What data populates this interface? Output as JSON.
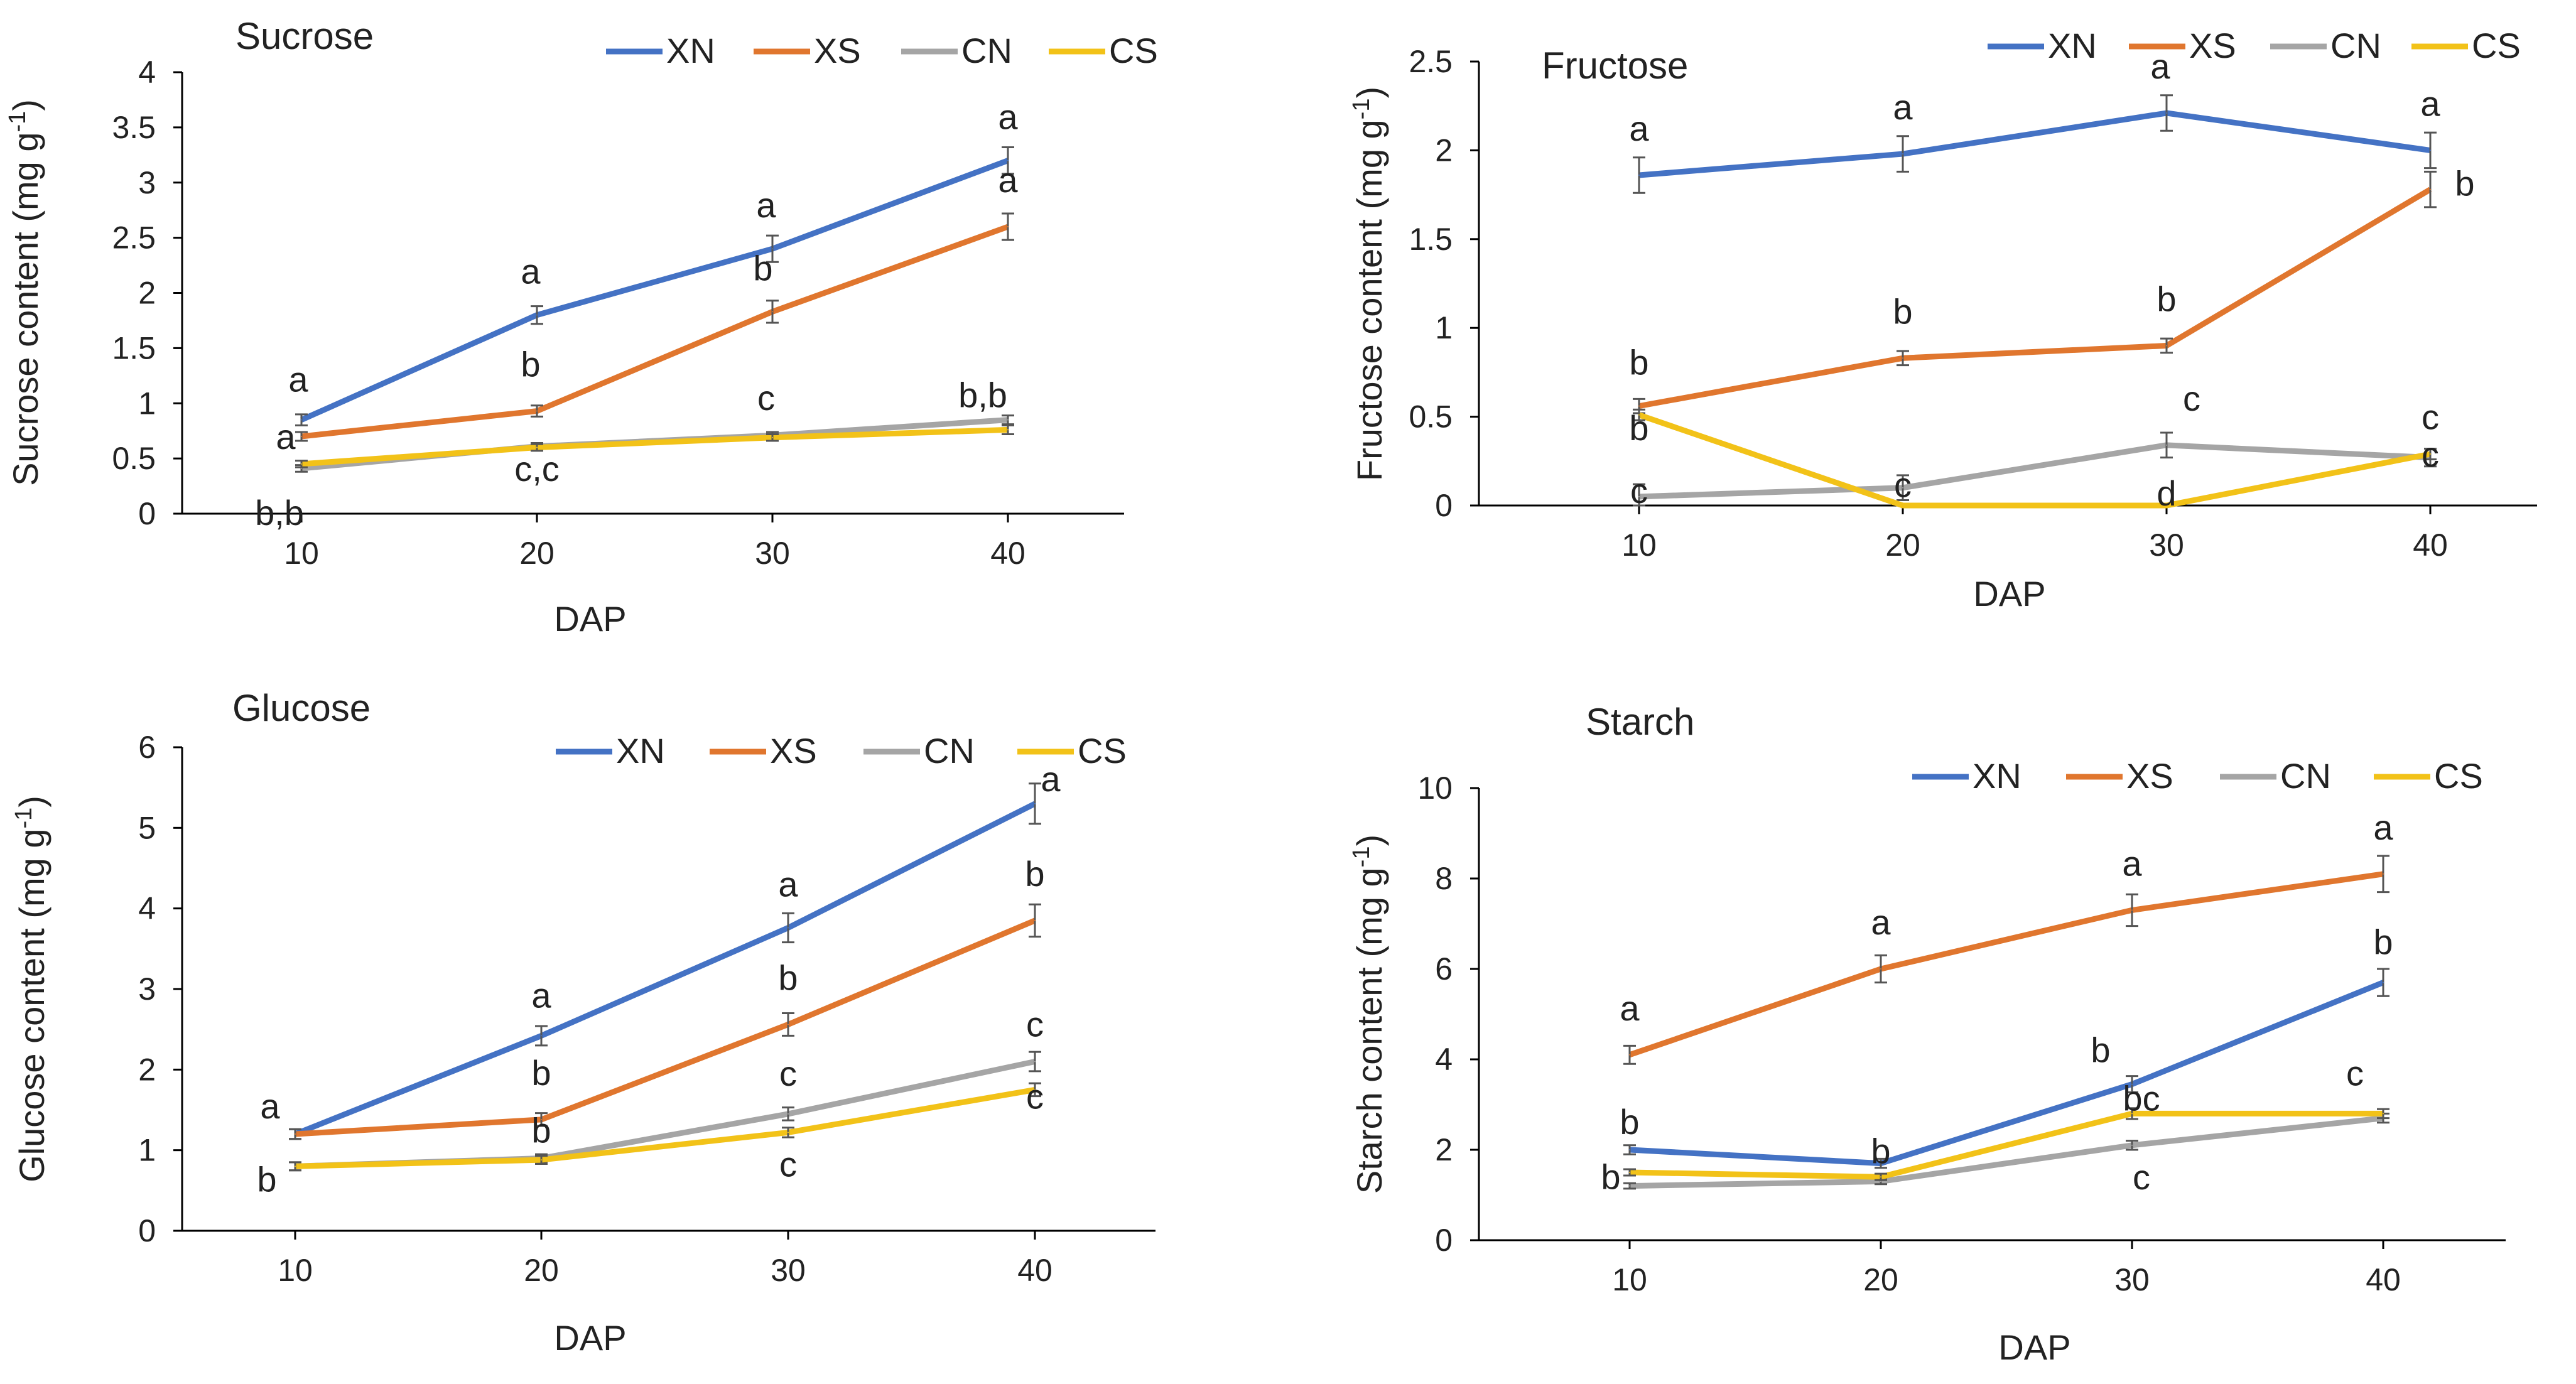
{
  "colors": {
    "XN": "#4472C4",
    "XS": "#E0762E",
    "CN": "#A5A5A5",
    "CS": "#F2C218",
    "axis": "#000000",
    "errorbar": "#555555"
  },
  "chart_data": [
    {
      "type": "line",
      "title": "Sucrose",
      "xlabel": "DAP",
      "ylabel": "Sucrose content (mg g",
      "ylabel_sup": "-1",
      "ylabel_end": ")",
      "x": [
        10,
        20,
        30,
        40
      ],
      "ylim": [
        0,
        4
      ],
      "yticks": [
        "0",
        "0.5",
        "1",
        "1.5",
        "2",
        "2.5",
        "3",
        "3.5",
        "4"
      ],
      "legend_position": "top-right",
      "grid": false,
      "series": [
        {
          "name": "XN",
          "values": [
            0.85,
            1.8,
            2.4,
            3.2
          ],
          "errors": [
            0.05,
            0.08,
            0.12,
            0.12
          ],
          "letters": [
            "a",
            "a",
            "a",
            "a"
          ]
        },
        {
          "name": "XS",
          "values": [
            0.7,
            0.93,
            1.83,
            2.6
          ],
          "errors": [
            0.04,
            0.05,
            0.1,
            0.12
          ],
          "letters": [
            "a",
            "b",
            "b",
            "a"
          ]
        },
        {
          "name": "CN",
          "values": [
            0.41,
            0.61,
            0.71,
            0.85
          ],
          "errors": [
            0.03,
            0.03,
            0.03,
            0.04
          ],
          "letters": [
            "b,b",
            "c,c",
            "c",
            "b,b"
          ]
        },
        {
          "name": "CS",
          "values": [
            0.45,
            0.6,
            0.69,
            0.76
          ],
          "errors": [
            0.03,
            0.03,
            0.03,
            0.04
          ],
          "letters": [
            "",
            "",
            "",
            ""
          ]
        }
      ]
    },
    {
      "type": "line",
      "title": "Fructose",
      "xlabel": "DAP",
      "ylabel": "Fructose content (mg g",
      "ylabel_sup": "-1",
      "ylabel_end": ")",
      "x": [
        10,
        20,
        30,
        40
      ],
      "ylim": [
        0,
        2.5
      ],
      "yticks": [
        "0",
        "0.5",
        "1",
        "1.5",
        "2",
        "2.5"
      ],
      "legend_position": "top-right",
      "grid": false,
      "series": [
        {
          "name": "XN",
          "values": [
            1.86,
            1.98,
            2.21,
            2.0
          ],
          "errors": [
            0.1,
            0.1,
            0.1,
            0.1
          ],
          "letters": [
            "a",
            "a",
            "a",
            "a"
          ]
        },
        {
          "name": "XS",
          "values": [
            0.56,
            0.83,
            0.9,
            1.78
          ],
          "errors": [
            0.04,
            0.04,
            0.04,
            0.1
          ],
          "letters": [
            "b",
            "b",
            "b",
            "b"
          ]
        },
        {
          "name": "CN",
          "values": [
            0.05,
            0.1,
            0.34,
            0.27
          ],
          "errors": [
            0.07,
            0.07,
            0.07,
            0.05
          ],
          "letters": [
            "c",
            "c",
            "c",
            "c"
          ]
        },
        {
          "name": "CS",
          "values": [
            0.51,
            0.0,
            0.0,
            0.29
          ],
          "errors": [
            0.03,
            0.0,
            0.0,
            0.03
          ],
          "letters": [
            "b",
            "",
            "d",
            "c"
          ]
        }
      ]
    },
    {
      "type": "line",
      "title": "Glucose",
      "xlabel": "DAP",
      "ylabel": "Glucose content (mg g",
      "ylabel_sup": "-1",
      "ylabel_end": ")",
      "x": [
        10,
        20,
        30,
        40
      ],
      "ylim": [
        0,
        6
      ],
      "yticks": [
        "0",
        "1",
        "2",
        "3",
        "4",
        "5",
        "6"
      ],
      "legend_position": "top-right",
      "grid": false,
      "series": [
        {
          "name": "XN",
          "values": [
            1.2,
            2.42,
            3.76,
            5.3
          ],
          "errors": [
            0.06,
            0.12,
            0.18,
            0.25
          ],
          "letters": [
            "a",
            "a",
            "a",
            "a"
          ]
        },
        {
          "name": "XS",
          "values": [
            1.2,
            1.38,
            2.56,
            3.85
          ],
          "errors": [
            0.06,
            0.08,
            0.14,
            0.2
          ],
          "letters": [
            "",
            "b",
            "b",
            "b"
          ]
        },
        {
          "name": "CN",
          "values": [
            0.8,
            0.9,
            1.45,
            2.1
          ],
          "errors": [
            0.05,
            0.05,
            0.08,
            0.12
          ],
          "letters": [
            "b",
            "b",
            "c",
            "c"
          ]
        },
        {
          "name": "CS",
          "values": [
            0.8,
            0.88,
            1.22,
            1.75
          ],
          "errors": [
            0.05,
            0.05,
            0.06,
            0.08
          ],
          "letters": [
            "",
            "",
            "c",
            "c"
          ]
        }
      ]
    },
    {
      "type": "line",
      "title": "Starch",
      "xlabel": "DAP",
      "ylabel": "Starch  content (mg g",
      "ylabel_sup": "-1",
      "ylabel_end": ")",
      "x": [
        10,
        20,
        30,
        40
      ],
      "ylim": [
        0,
        10
      ],
      "yticks": [
        "0",
        "2",
        "4",
        "6",
        "8",
        "10"
      ],
      "legend_position": "top-right",
      "grid": false,
      "series": [
        {
          "name": "XN",
          "values": [
            2.0,
            1.7,
            3.45,
            5.7
          ],
          "errors": [
            0.1,
            0.1,
            0.18,
            0.3
          ],
          "letters": [
            "b",
            "b",
            "b",
            "b"
          ]
        },
        {
          "name": "XS",
          "values": [
            4.1,
            6.0,
            7.3,
            8.1
          ],
          "errors": [
            0.2,
            0.3,
            0.35,
            0.4
          ],
          "letters": [
            "a",
            "a",
            "a",
            "a"
          ]
        },
        {
          "name": "CN",
          "values": [
            1.2,
            1.3,
            2.1,
            2.7
          ],
          "errors": [
            0.06,
            0.06,
            0.1,
            0.1
          ],
          "letters": [
            "b",
            "",
            "c",
            ""
          ]
        },
        {
          "name": "CS",
          "values": [
            1.5,
            1.4,
            2.8,
            2.8
          ],
          "errors": [
            0.07,
            0.07,
            0.12,
            0.1
          ],
          "letters": [
            "",
            "",
            "bc",
            "c"
          ]
        }
      ]
    }
  ]
}
